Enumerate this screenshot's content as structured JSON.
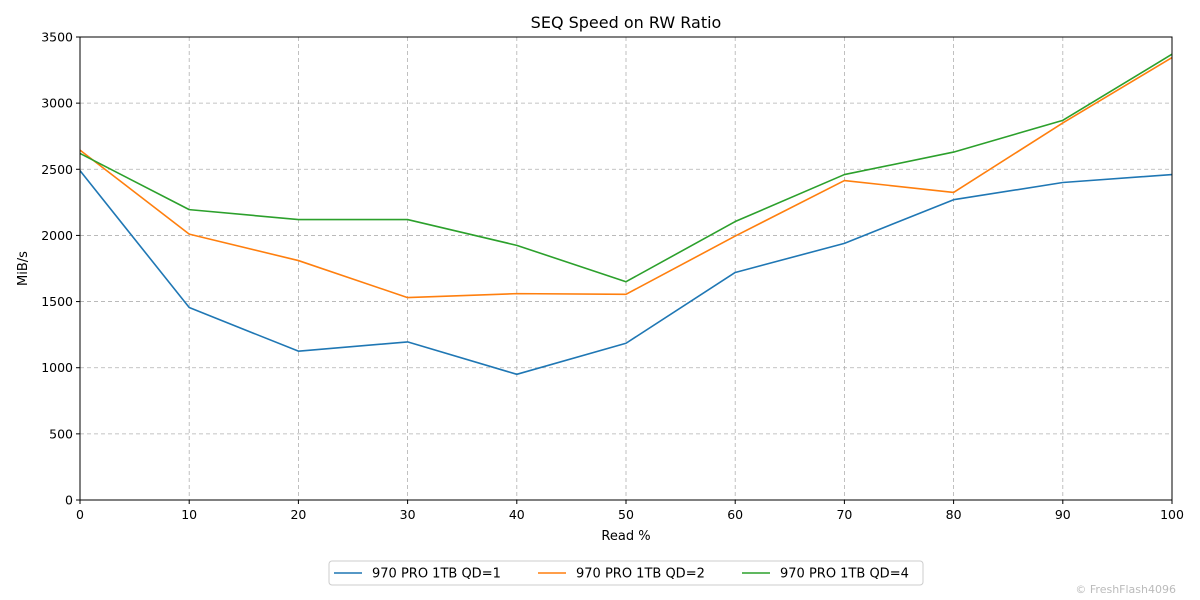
{
  "chart_data": {
    "type": "line",
    "title": "SEQ Speed on RW Ratio",
    "xlabel": "Read %",
    "ylabel": "MiB/s",
    "xlim": [
      0,
      100
    ],
    "ylim": [
      0,
      3500
    ],
    "xticks": [
      0,
      10,
      20,
      30,
      40,
      50,
      60,
      70,
      80,
      90,
      100
    ],
    "yticks": [
      0,
      500,
      1000,
      1500,
      2000,
      2500,
      3000,
      3500
    ],
    "grid": true,
    "legend_position": "bottom-center",
    "x": [
      0,
      10,
      20,
      30,
      40,
      50,
      60,
      70,
      80,
      90,
      100
    ],
    "series": [
      {
        "name": "970 PRO 1TB QD=1",
        "color": "#1f77b4",
        "values": [
          2490,
          1455,
          1125,
          1195,
          950,
          1185,
          1720,
          1940,
          2270,
          2400,
          2460
        ]
      },
      {
        "name": "970 PRO 1TB QD=2",
        "color": "#ff7f0e",
        "values": [
          2645,
          2010,
          1810,
          1530,
          1560,
          1555,
          1995,
          2415,
          2325,
          2850,
          3345
        ]
      },
      {
        "name": "970 PRO 1TB QD=4",
        "color": "#2ca02c",
        "values": [
          2620,
          2195,
          2120,
          2120,
          1925,
          1650,
          2105,
          2460,
          2630,
          2870,
          3370
        ]
      }
    ]
  },
  "watermark": "© FreshFlash4096"
}
